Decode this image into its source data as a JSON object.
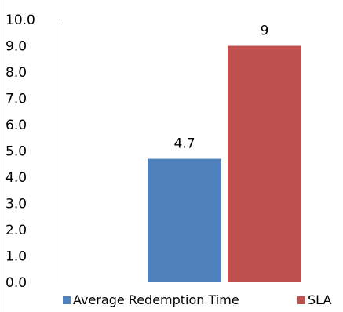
{
  "chart_data": {
    "type": "bar",
    "series": [
      {
        "name": "Average Redemption Time",
        "value": 4.7,
        "label": "4.7",
        "color": "#4f81bd"
      },
      {
        "name": "SLA",
        "value": 9,
        "label": "9",
        "color": "#c0504d"
      }
    ],
    "ylim": [
      0,
      10
    ],
    "yticks": [
      "0.0",
      "1.0",
      "2.0",
      "3.0",
      "4.0",
      "5.0",
      "6.0",
      "7.0",
      "8.0",
      "9.0",
      "10.0"
    ],
    "grid": false,
    "legend_position": "bottom"
  }
}
